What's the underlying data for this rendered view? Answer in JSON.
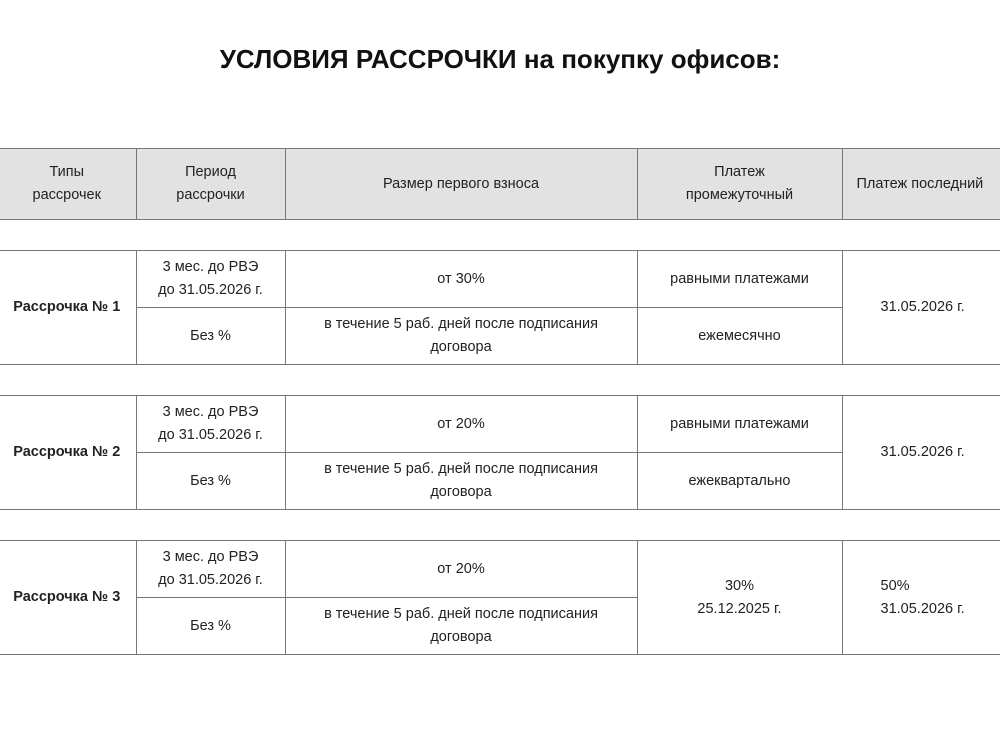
{
  "title": "УСЛОВИЯ РАССРОЧКИ на покупку офисов:",
  "header": [
    "Типы\nрассрочек",
    "Период\nрассрочки",
    "Размер первого взноса",
    "Платеж\nпромежуточный",
    "Платеж последний"
  ],
  "plans": [
    {
      "name": "Рассрочка № 1",
      "period": "3 мес. до РВЭ\nдо 31.05.2026 г.",
      "interest": "Без %",
      "first_payment": "от 30%",
      "first_payment_term": "в течение 5 раб. дней после подписания\nдоговора",
      "intermediate_1": "равными платежами",
      "intermediate_2": "ежемесячно",
      "last": "31.05.2026 г."
    },
    {
      "name": "Рассрочка № 2",
      "period": "3 мес. до РВЭ\nдо 31.05.2026 г.",
      "interest": "Без %",
      "first_payment": "от 20%",
      "first_payment_term": "в течение 5 раб. дней после подписания\nдоговора",
      "intermediate_1": "равными платежами",
      "intermediate_2": "ежеквартально",
      "last": "31.05.2026 г."
    },
    {
      "name": "Рассрочка № 3",
      "period": "3 мес. до РВЭ\nдо 31.05.2026 г.",
      "interest": "Без %",
      "first_payment": "от 20%",
      "first_payment_term": "в течение 5 раб. дней после подписания\nдоговора",
      "intermediate": "30%\n25.12.2025 г.",
      "last": "50%\n31.05.2026 г."
    }
  ]
}
